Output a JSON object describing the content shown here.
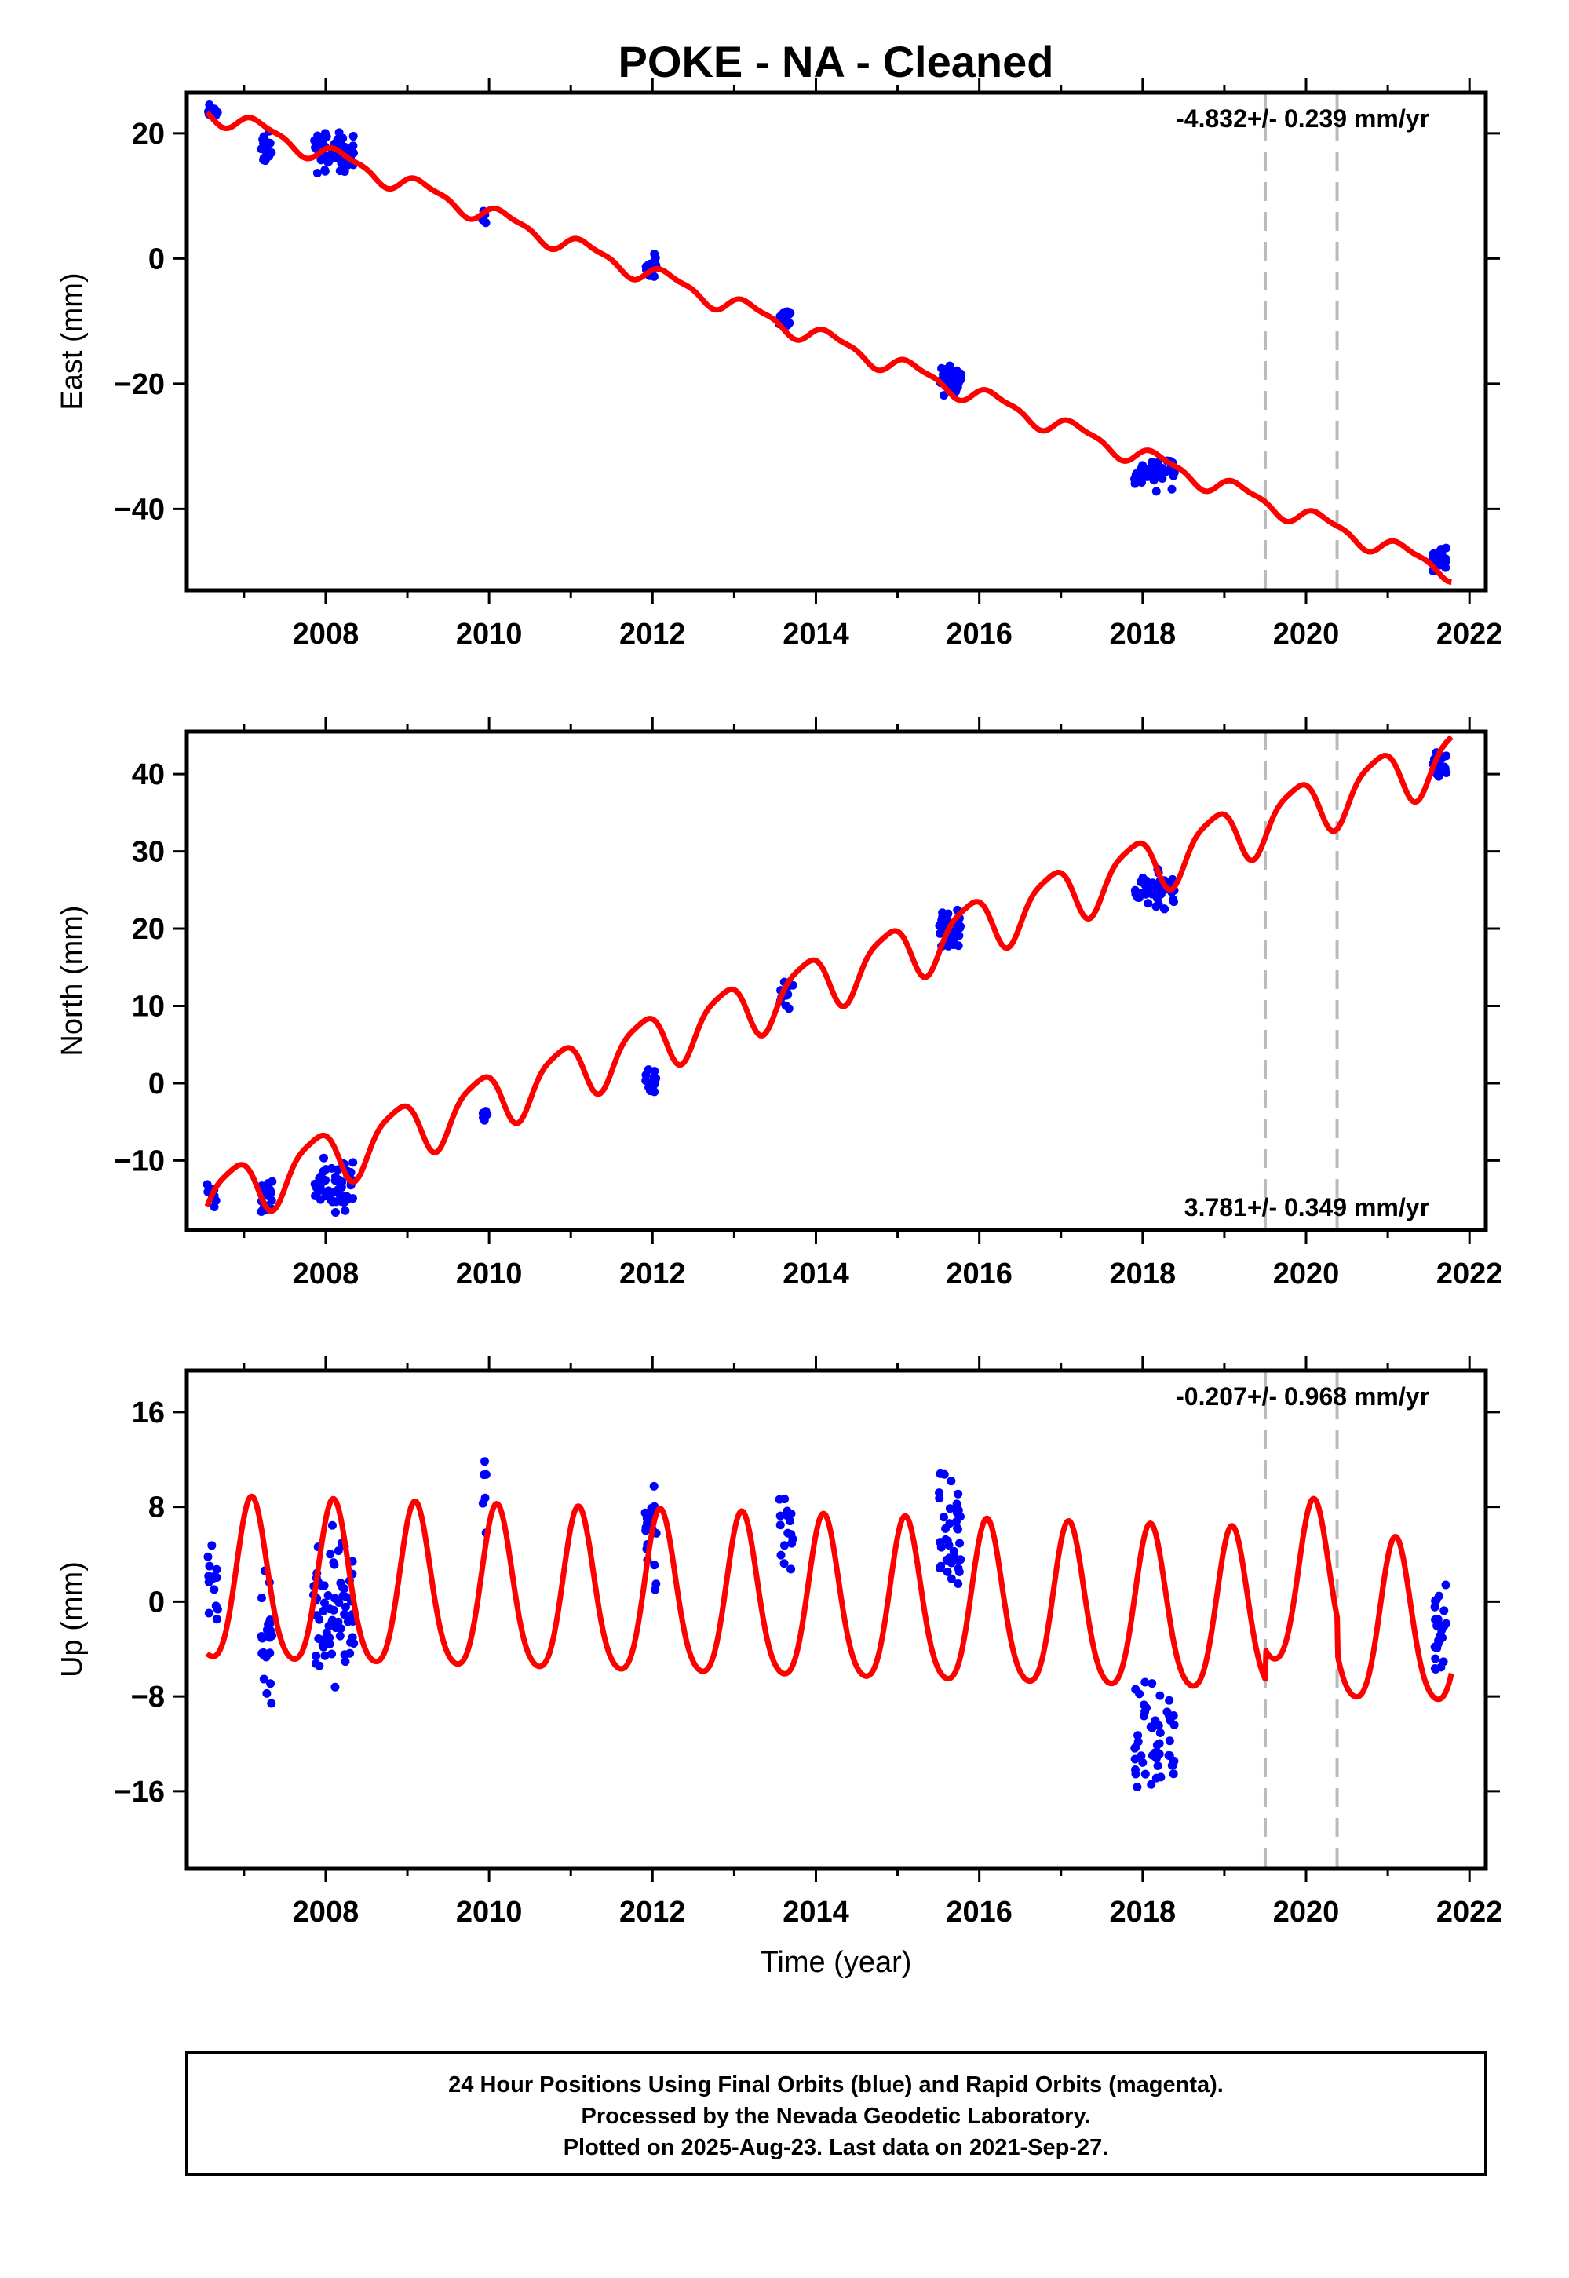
{
  "title": "POKE  - NA - Cleaned",
  "x_axis_label": "Time (year)",
  "footer": {
    "lines": [
      "24 Hour Positions Using Final Orbits (blue) and Rapid Orbits (magenta).",
      "Processed by the Nevada Geodetic Laboratory.",
      "Plotted on 2025-Aug-23. Last data on 2021-Sep-27."
    ]
  },
  "colors": {
    "final_orbits_points": "#0000ff",
    "model_curve": "#ff0000",
    "event_lines": "#bbbbbb",
    "frame": "#000000"
  },
  "chart_data": [
    {
      "type": "scatter",
      "panel": "east",
      "ylabel": "East (mm)",
      "rate_label": "-4.832+/- 0.239 mm/yr",
      "rate_position": "top-right",
      "xlim": [
        2006.3,
        2022.2
      ],
      "ylim": [
        -53,
        26.5
      ],
      "x_ticks": [
        2008,
        2010,
        2012,
        2014,
        2016,
        2018,
        2020,
        2022
      ],
      "y_ticks": [
        20,
        0,
        -20,
        -40
      ],
      "event_lines_x": [
        2019.5,
        2020.38
      ],
      "model": {
        "name": "",
        "intercept_at_2006_6": 23.4,
        "rate_mm_per_yr": -4.832,
        "annual_amp": 1.4,
        "annual_phase": 0.3,
        "semiannual_amp": 0.5,
        "semiannual_phase": 1.2
      },
      "data_clusters": [
        {
          "x_start": 2006.55,
          "x_end": 2006.68,
          "y_center": 23.4,
          "y_spread": 1.0,
          "n": 12
        },
        {
          "x_start": 2007.2,
          "x_end": 2007.35,
          "y_center": 17.5,
          "y_spread": 2.2,
          "n": 20
        },
        {
          "x_start": 2007.85,
          "x_end": 2008.35,
          "y_center": 17.0,
          "y_spread": 2.6,
          "n": 60
        },
        {
          "x_start": 2009.92,
          "x_end": 2009.98,
          "y_center": 6.8,
          "y_spread": 1.0,
          "n": 6
        },
        {
          "x_start": 2011.9,
          "x_end": 2012.05,
          "y_center": -1.0,
          "y_spread": 1.6,
          "n": 18
        },
        {
          "x_start": 2013.55,
          "x_end": 2013.72,
          "y_center": -9.5,
          "y_spread": 1.3,
          "n": 14
        },
        {
          "x_start": 2015.5,
          "x_end": 2015.78,
          "y_center": -19.5,
          "y_spread": 1.7,
          "n": 40
        },
        {
          "x_start": 2017.9,
          "x_end": 2018.4,
          "y_center": -34.0,
          "y_spread": 2.2,
          "n": 45
        },
        {
          "x_start": 2021.55,
          "x_end": 2021.72,
          "y_center": -48.0,
          "y_spread": 1.6,
          "n": 25
        }
      ]
    },
    {
      "type": "scatter",
      "panel": "north",
      "ylabel": "North (mm)",
      "rate_label": "3.781+/- 0.349 mm/yr",
      "rate_position": "bottom-right",
      "xlim": [
        2006.3,
        2022.2
      ],
      "ylim": [
        -19,
        45.5
      ],
      "x_ticks": [
        2008,
        2010,
        2012,
        2014,
        2016,
        2018,
        2020,
        2022
      ],
      "y_ticks": [
        40,
        30,
        20,
        10,
        0,
        -10
      ],
      "event_lines_x": [
        2019.5,
        2020.38
      ],
      "model": {
        "name": "",
        "intercept_at_2006_6": -15.0,
        "rate_mm_per_yr": 3.781,
        "annual_amp": 3.6,
        "annual_phase": 2.4,
        "semiannual_amp": 0.8,
        "semiannual_phase": 0.6
      },
      "data_clusters": [
        {
          "x_start": 2006.55,
          "x_end": 2006.68,
          "y_center": -14.5,
          "y_spread": 1.5,
          "n": 12
        },
        {
          "x_start": 2007.2,
          "x_end": 2007.35,
          "y_center": -14.5,
          "y_spread": 2.0,
          "n": 20
        },
        {
          "x_start": 2007.85,
          "x_end": 2008.35,
          "y_center": -13.0,
          "y_spread": 2.5,
          "n": 60
        },
        {
          "x_start": 2009.92,
          "x_end": 2009.98,
          "y_center": -4.0,
          "y_spread": 1.0,
          "n": 6
        },
        {
          "x_start": 2011.9,
          "x_end": 2012.05,
          "y_center": 0.0,
          "y_spread": 1.6,
          "n": 18
        },
        {
          "x_start": 2013.55,
          "x_end": 2013.72,
          "y_center": 11.5,
          "y_spread": 1.4,
          "n": 14
        },
        {
          "x_start": 2015.5,
          "x_end": 2015.78,
          "y_center": 20.0,
          "y_spread": 1.8,
          "n": 40
        },
        {
          "x_start": 2017.9,
          "x_end": 2018.4,
          "y_center": 25.0,
          "y_spread": 2.0,
          "n": 45
        },
        {
          "x_start": 2021.55,
          "x_end": 2021.72,
          "y_center": 41.0,
          "y_spread": 1.4,
          "n": 25
        }
      ]
    },
    {
      "type": "scatter",
      "panel": "up",
      "ylabel": "Up (mm)",
      "rate_label": "-0.207+/- 0.968 mm/yr",
      "rate_position": "top-right",
      "xlim": [
        2006.3,
        2022.2
      ],
      "ylim": [
        -22.5,
        19.5
      ],
      "x_ticks": [
        2008,
        2010,
        2012,
        2014,
        2016,
        2018,
        2020,
        2022
      ],
      "y_ticks": [
        16,
        8,
        0,
        -8,
        -16
      ],
      "event_lines_x": [
        2019.5,
        2020.38
      ],
      "model": {
        "name": "",
        "intercept_at_2006_6": 1.2,
        "rate_mm_per_yr": -0.207,
        "annual_amp": 6.8,
        "annual_phase": 0.95,
        "semiannual_amp": 1.0,
        "semiannual_phase": 0.5,
        "offsets": [
          {
            "x": 2019.5,
            "dy": 2.5
          },
          {
            "x": 2020.38,
            "dy": -3.0
          }
        ]
      },
      "data_clusters": [
        {
          "x_start": 2006.55,
          "x_end": 2006.68,
          "y_center": 1.5,
          "y_spread": 4.0,
          "n": 14
        },
        {
          "x_start": 2007.2,
          "x_end": 2007.35,
          "y_center": -3.0,
          "y_spread": 4.5,
          "n": 22
        },
        {
          "x_start": 2007.85,
          "x_end": 2008.35,
          "y_center": -1.0,
          "y_spread": 5.0,
          "n": 70
        },
        {
          "x_start": 2009.92,
          "x_end": 2009.98,
          "y_center": 9.0,
          "y_spread": 3.0,
          "n": 6
        },
        {
          "x_start": 2011.9,
          "x_end": 2012.05,
          "y_center": 4.5,
          "y_spread": 4.0,
          "n": 20
        },
        {
          "x_start": 2013.55,
          "x_end": 2013.72,
          "y_center": 6.0,
          "y_spread": 3.5,
          "n": 16
        },
        {
          "x_start": 2015.5,
          "x_end": 2015.78,
          "y_center": 5.0,
          "y_spread": 4.5,
          "n": 42
        },
        {
          "x_start": 2017.9,
          "x_end": 2018.4,
          "y_center": -12.0,
          "y_spread": 4.5,
          "n": 50
        },
        {
          "x_start": 2021.55,
          "x_end": 2021.72,
          "y_center": -3.0,
          "y_spread": 3.8,
          "n": 26
        }
      ]
    }
  ]
}
